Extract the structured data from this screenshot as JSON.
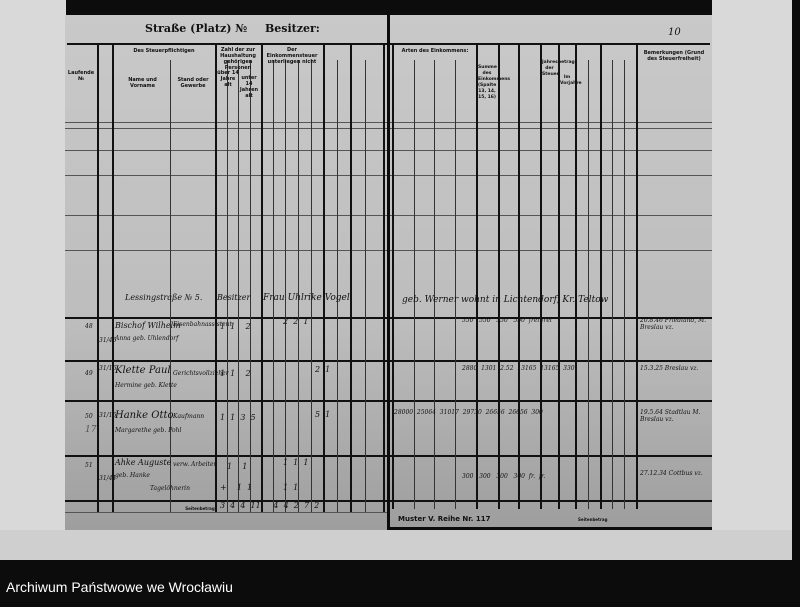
{
  "document": {
    "left_page": {
      "title": "Straße (Platz) №",
      "owner_label": "Besitzer:",
      "headers": {
        "row_no": "Laufende №",
        "taxpayer": "Des Steuerpflichtigen",
        "name": "Name und Vorname",
        "status": "Stand oder Gewerbe",
        "persons": "Zahl der zur Haushaltung gehörigen Personen",
        "over14": "über 14 Jahre alt",
        "under14": "unter 14 Jahren alt",
        "income_sources": "Der Einkommensteuer unterliegen nicht"
      },
      "footer_label": "Seitenbetrag",
      "rows": [
        {
          "no": "",
          "date": "",
          "name": "Lessingstraße № 5.",
          "status": "Besitzer",
          "extra": "Frau Uhlrike Vogel"
        },
        {
          "no": "48",
          "date": "31/46",
          "name": "Bischof Wilhelm",
          "name2": "Anna geb. Uhlendorf",
          "status": "Eisenbahnassistent",
          "counts": "1  1    2",
          "side": "2  2  1"
        },
        {
          "no": "49",
          "date": "31/16",
          "name": "Klette Paul",
          "name2": "Hermine geb. Klette",
          "status": "Gerichtsvollzieher",
          "counts": "1  1    2",
          "side": "2  1"
        },
        {
          "no": "50",
          "date": "31/16",
          "name": "Hanke Otto",
          "name2": "Margarethe geb. Pohl",
          "status": "Kaufmann",
          "counts": "1  1  3  5",
          "side": "5  1",
          "extra_no": "17"
        },
        {
          "no": "51",
          "date": "31/41",
          "name": "Ahke Auguste",
          "name2": "geb. Hanke",
          "status": "verw. Arbeiter",
          "counts": "1    1",
          "side": "1  1  1",
          "sub": "Tagelöhnerin",
          "sub_counts": "+    1  1",
          "sub_side": "1  1"
        }
      ],
      "totals": "3  4  4  11     4  4  2  7  2"
    },
    "right_page": {
      "page_number": "10",
      "headers": {
        "income": "Arten des Einkommens:",
        "total": "Summe des Einkommens (Spalte 13, 14, 15, 16)",
        "tax": "Jahresbetrag der Steuer",
        "year": "Im Vorjahre",
        "remarks": "Bemerkungen (Grund des Steuerfreiheit)"
      },
      "rows": [
        {
          "text": "geb. Werner wohnt in Lichtendorf, Kr. Teltow"
        },
        {
          "vals": "550   550   550   550  frei frei",
          "remark": "20.8.46 Friedland, M. Breslau vz."
        },
        {
          "vals": "2880  1301  2.52  13165  13165  330",
          "remark": "15.3.25 Breslau vz."
        },
        {
          "vals": "28000  25064  31017  29730  26656  26656  300",
          "remark": "19.5.64 Stadtlau M. Breslau vz."
        },
        {
          "vals": "300   300   300   300  fr.  fr.",
          "remark": "27.12.34 Cottbus vz."
        }
      ],
      "footer_label": "Seitenbetrag",
      "form_note": "Muster V. Reihe Nr. 117"
    }
  },
  "caption": "Archiwum Państwowe we Wrocławiu"
}
